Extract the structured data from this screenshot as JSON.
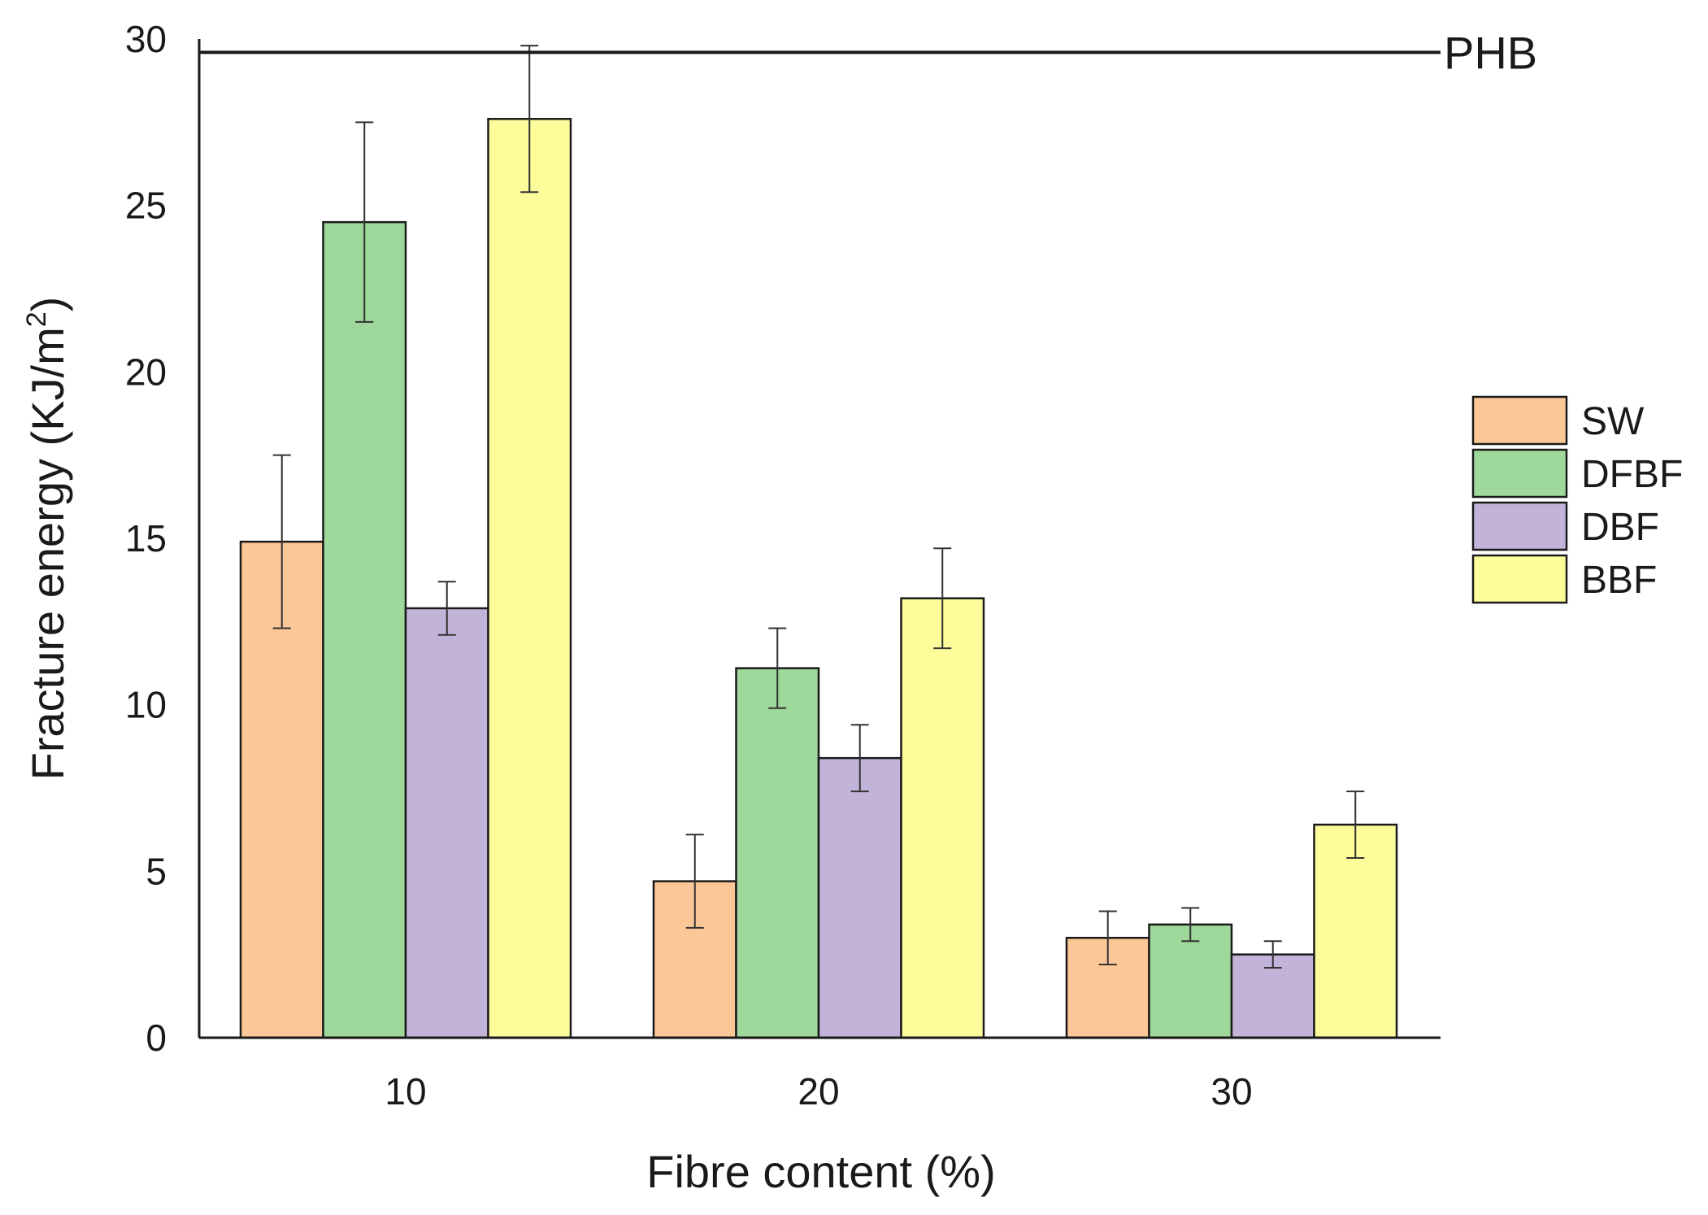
{
  "chart_data": {
    "type": "bar",
    "categories": [
      "10",
      "20",
      "30"
    ],
    "series": [
      {
        "name": "SW",
        "color": "#FCC797",
        "values": [
          14.9,
          4.7,
          3.0
        ],
        "errors": [
          2.6,
          1.4,
          0.8
        ]
      },
      {
        "name": "DFBF",
        "color": "#9ED89B",
        "values": [
          24.5,
          11.1,
          3.4
        ],
        "errors": [
          3.0,
          1.2,
          0.5
        ]
      },
      {
        "name": "DBF",
        "color": "#C2B4D9",
        "values": [
          12.9,
          8.4,
          2.5
        ],
        "errors": [
          0.8,
          1.0,
          0.4
        ]
      },
      {
        "name": "BBF",
        "color": "#FCFC9B",
        "values": [
          27.6,
          13.2,
          6.4
        ],
        "errors": [
          2.2,
          1.5,
          1.0
        ]
      }
    ],
    "reference_line": {
      "label": "PHB",
      "value": 29.6
    },
    "xlabel": "Fibre content (%)",
    "ylabel_main": "Fracture energy (KJ/m",
    "ylabel_sup": "2",
    "ylabel_end": ")",
    "ylim": [
      0,
      30
    ],
    "yticks": [
      "0",
      "5",
      "10",
      "15",
      "20",
      "25",
      "30"
    ],
    "legend_position": "right",
    "grid": false
  }
}
